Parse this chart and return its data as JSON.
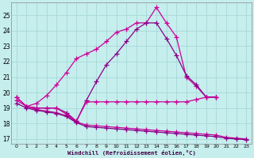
{
  "xlabel": "Windchill (Refroidissement éolien,°C)",
  "xlim": [
    -0.5,
    23.5
  ],
  "ylim": [
    16.7,
    25.8
  ],
  "yticks": [
    17,
    18,
    19,
    20,
    21,
    22,
    23,
    24,
    25
  ],
  "xticks": [
    0,
    1,
    2,
    3,
    4,
    5,
    6,
    7,
    8,
    9,
    10,
    11,
    12,
    13,
    14,
    15,
    16,
    17,
    18,
    19,
    20,
    21,
    22,
    23
  ],
  "background_color": "#c5eeed",
  "grid_color": "#a8d8d8",
  "c_magenta": "#cc0099",
  "c_purple": "#880088",
  "curve1_x": [
    0,
    1,
    2,
    3,
    4,
    5,
    6,
    7,
    8,
    9,
    10,
    11,
    12,
    13,
    14,
    15,
    16,
    17,
    18,
    19,
    20
  ],
  "curve1_y": [
    19.7,
    19.1,
    19.3,
    19.8,
    20.5,
    21.3,
    22.2,
    22.5,
    22.8,
    23.3,
    23.9,
    24.1,
    24.5,
    24.5,
    25.5,
    24.5,
    23.6,
    21.0,
    20.4,
    19.7,
    19.7
  ],
  "curve2_x": [
    1,
    2,
    3,
    4,
    5,
    6,
    7,
    8,
    9,
    10,
    11,
    12,
    13,
    14,
    15,
    16,
    17,
    18,
    19,
    20
  ],
  "curve2_y": [
    19.1,
    19.0,
    19.0,
    19.0,
    18.7,
    18.15,
    19.5,
    20.7,
    21.8,
    22.5,
    23.3,
    24.1,
    24.5,
    24.5,
    23.5,
    22.4,
    21.1,
    20.5,
    19.7,
    19.7
  ],
  "curve3_x": [
    0,
    1,
    2,
    3,
    4,
    5,
    6,
    7,
    8,
    9,
    10,
    11,
    12,
    13,
    14,
    15,
    16,
    17,
    18,
    19,
    20,
    21,
    22,
    23
  ],
  "curve3_y": [
    19.7,
    19.1,
    19.0,
    19.0,
    19.0,
    18.6,
    18.15,
    19.4,
    19.4,
    19.4,
    19.4,
    19.4,
    19.4,
    19.4,
    19.4,
    19.4,
    19.4,
    19.4,
    19.55,
    19.7,
    19.7,
    null,
    null,
    null
  ],
  "curve4_x": [
    0,
    1,
    2,
    3,
    4,
    5,
    6,
    7,
    8,
    9,
    10,
    11,
    12,
    13,
    14,
    15,
    16,
    17,
    18,
    19,
    20,
    21,
    22,
    23
  ],
  "curve4_y": [
    19.5,
    19.1,
    18.9,
    18.8,
    18.7,
    18.5,
    18.1,
    17.9,
    17.85,
    17.8,
    17.75,
    17.7,
    17.65,
    17.6,
    17.55,
    17.5,
    17.45,
    17.4,
    17.35,
    17.3,
    17.25,
    17.1,
    17.05,
    17.0
  ],
  "curve5_x": [
    0,
    1,
    2,
    3,
    4,
    5,
    6,
    7,
    8,
    9,
    10,
    11,
    12,
    13,
    14,
    15,
    16,
    17,
    18,
    19,
    20,
    21,
    22,
    23
  ],
  "curve5_y": [
    19.3,
    19.0,
    18.85,
    18.75,
    18.65,
    18.45,
    18.05,
    17.8,
    17.75,
    17.7,
    17.65,
    17.6,
    17.55,
    17.5,
    17.45,
    17.4,
    17.35,
    17.3,
    17.25,
    17.2,
    17.15,
    17.05,
    17.0,
    16.95
  ]
}
